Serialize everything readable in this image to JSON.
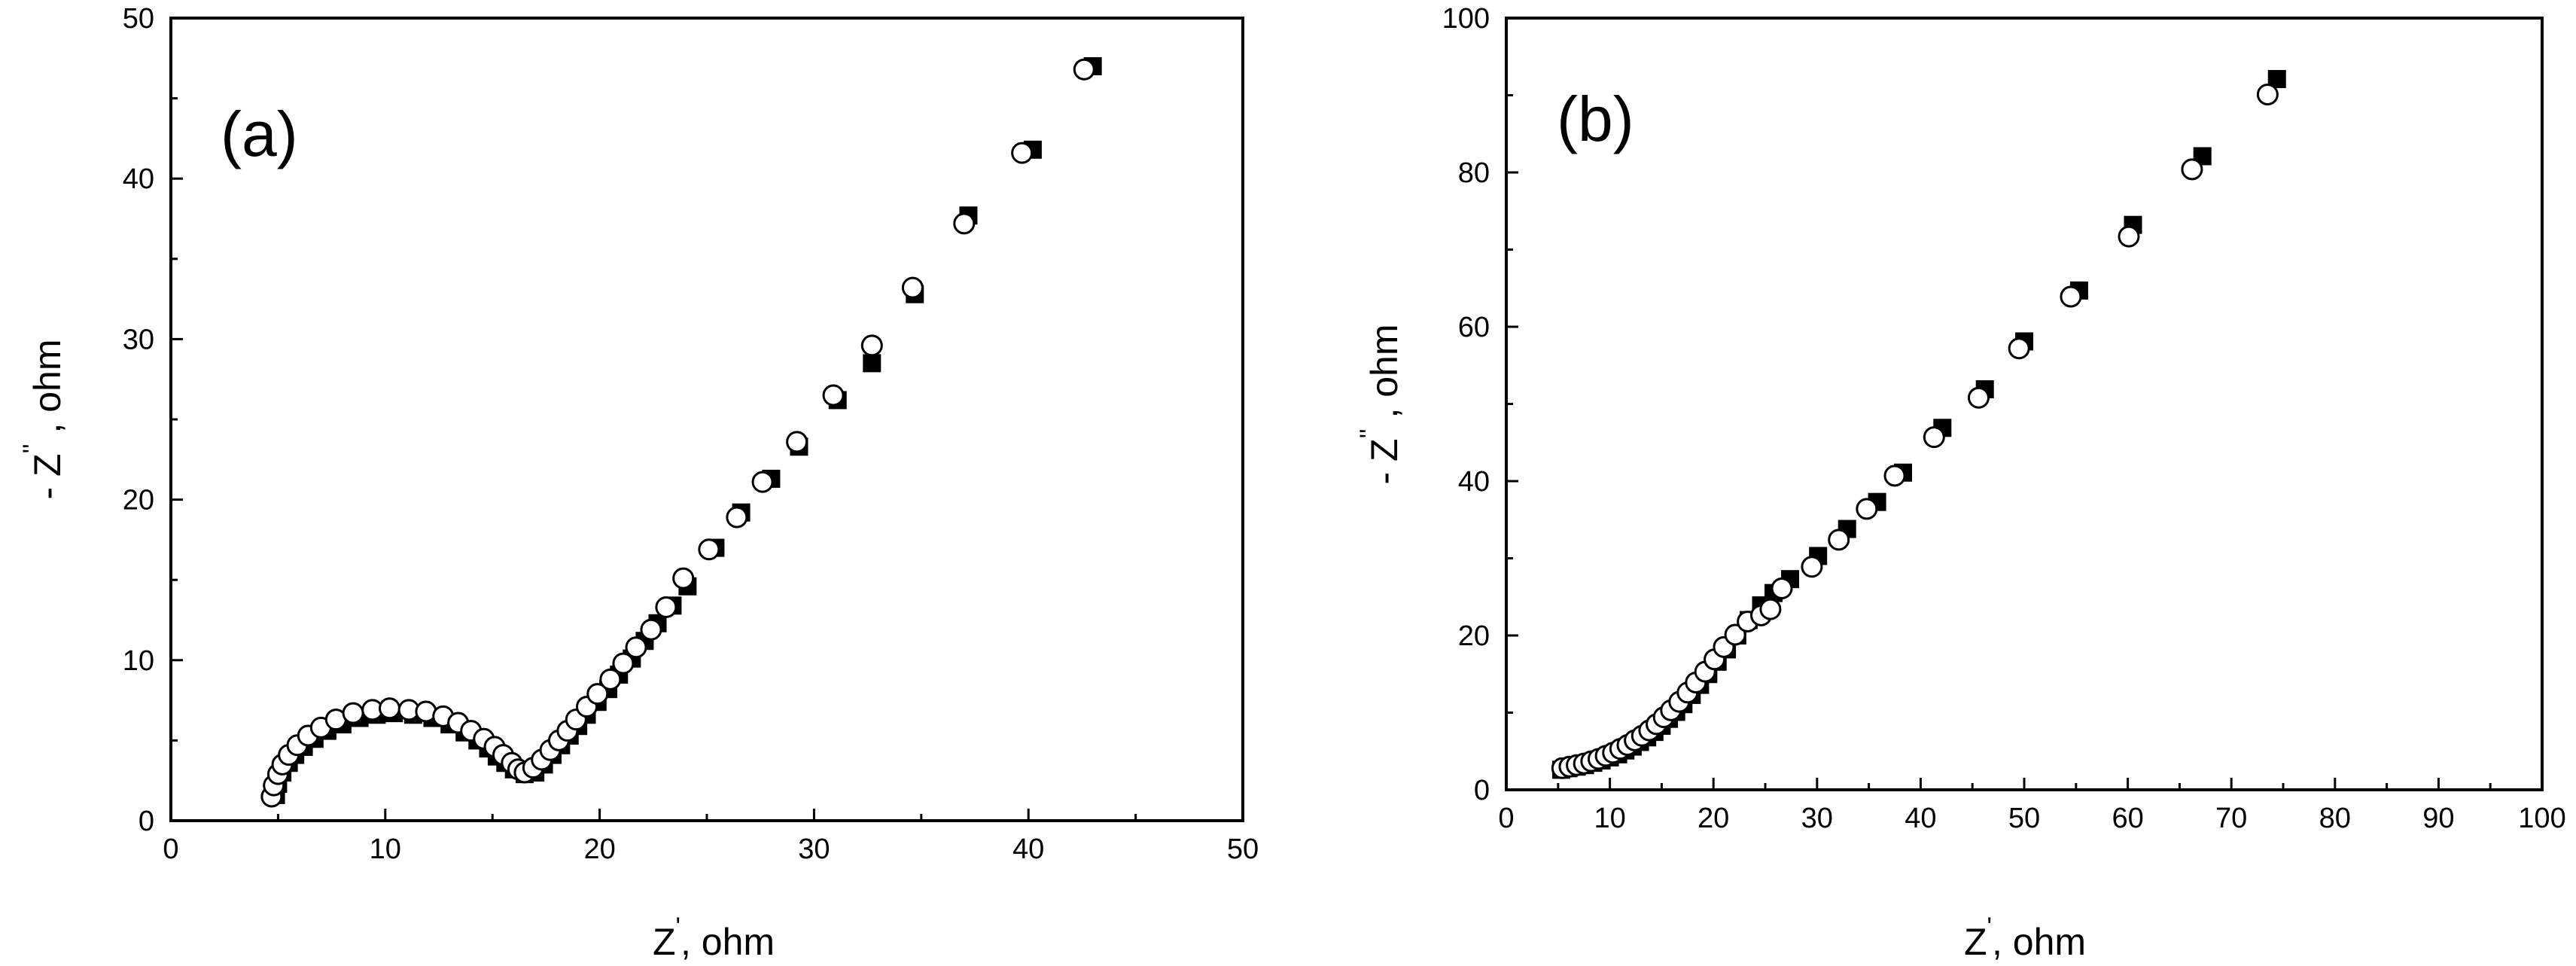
{
  "chart_data": [
    {
      "type": "scatter",
      "panel_label": "(a)",
      "xlabel": "Z', ohm",
      "ylabel": "-Z'', ohm",
      "xlabel_main": "Z",
      "xlabel_prime": "'",
      "xlabel_rest": ", ohm",
      "ylabel_main": "- Z",
      "ylabel_prime": "''",
      "ylabel_rest": " , ohm",
      "xlim": [
        0,
        50
      ],
      "ylim": [
        0,
        50
      ],
      "xticks": [
        "0",
        "10",
        "20",
        "30",
        "40",
        "50"
      ],
      "yticks": [
        "0",
        "10",
        "20",
        "30",
        "40",
        "50"
      ],
      "series": [
        {
          "name": "filled squares",
          "marker": "square",
          "color": "#000000",
          "points": [
            [
              4.9,
              1.6
            ],
            [
              5.0,
              2.3
            ],
            [
              5.2,
              3.0
            ],
            [
              5.5,
              3.6
            ],
            [
              5.8,
              4.1
            ],
            [
              6.2,
              4.6
            ],
            [
              6.7,
              5.1
            ],
            [
              7.3,
              5.6
            ],
            [
              8.0,
              6.0
            ],
            [
              8.8,
              6.4
            ],
            [
              9.6,
              6.6
            ],
            [
              10.4,
              6.7
            ],
            [
              11.3,
              6.6
            ],
            [
              12.2,
              6.4
            ],
            [
              13.0,
              6.0
            ],
            [
              13.7,
              5.5
            ],
            [
              14.3,
              5.0
            ],
            [
              14.8,
              4.5
            ],
            [
              15.2,
              4.0
            ],
            [
              15.6,
              3.6
            ],
            [
              16.0,
              3.2
            ],
            [
              16.5,
              2.9
            ],
            [
              17.0,
              3.0
            ],
            [
              17.4,
              3.5
            ],
            [
              17.8,
              4.1
            ],
            [
              18.2,
              4.7
            ],
            [
              18.6,
              5.3
            ],
            [
              19.0,
              5.9
            ],
            [
              19.4,
              6.6
            ],
            [
              19.9,
              7.4
            ],
            [
              20.4,
              8.2
            ],
            [
              20.9,
              9.1
            ],
            [
              21.5,
              10.1
            ],
            [
              22.1,
              11.2
            ],
            [
              22.7,
              12.3
            ],
            [
              23.4,
              13.4
            ],
            [
              24.1,
              14.6
            ],
            [
              25.4,
              17.0
            ],
            [
              26.6,
              19.2
            ],
            [
              28.0,
              21.3
            ],
            [
              29.3,
              23.3
            ],
            [
              31.1,
              26.2
            ],
            [
              32.7,
              28.5
            ],
            [
              34.7,
              32.8
            ],
            [
              37.2,
              37.7
            ],
            [
              40.2,
              41.8
            ],
            [
              43.0,
              47.0
            ]
          ]
        },
        {
          "name": "open circles",
          "marker": "circle",
          "color": "#000000",
          "points": [
            [
              4.7,
              1.5
            ],
            [
              4.8,
              2.2
            ],
            [
              5.0,
              2.9
            ],
            [
              5.2,
              3.5
            ],
            [
              5.5,
              4.1
            ],
            [
              5.9,
              4.7
            ],
            [
              6.4,
              5.3
            ],
            [
              7.0,
              5.8
            ],
            [
              7.7,
              6.3
            ],
            [
              8.5,
              6.7
            ],
            [
              9.4,
              6.9
            ],
            [
              10.2,
              7.0
            ],
            [
              11.1,
              6.9
            ],
            [
              11.9,
              6.8
            ],
            [
              12.7,
              6.5
            ],
            [
              13.4,
              6.1
            ],
            [
              14.0,
              5.6
            ],
            [
              14.6,
              5.1
            ],
            [
              15.1,
              4.6
            ],
            [
              15.5,
              4.1
            ],
            [
              15.9,
              3.6
            ],
            [
              16.2,
              3.2
            ],
            [
              16.5,
              3.0
            ],
            [
              16.9,
              3.3
            ],
            [
              17.3,
              3.8
            ],
            [
              17.7,
              4.4
            ],
            [
              18.1,
              5.0
            ],
            [
              18.5,
              5.6
            ],
            [
              18.9,
              6.3
            ],
            [
              19.4,
              7.1
            ],
            [
              19.9,
              7.9
            ],
            [
              20.5,
              8.8
            ],
            [
              21.1,
              9.8
            ],
            [
              21.7,
              10.8
            ],
            [
              22.4,
              11.9
            ],
            [
              23.1,
              13.3
            ],
            [
              23.9,
              15.1
            ],
            [
              25.1,
              16.9
            ],
            [
              26.4,
              18.9
            ],
            [
              27.6,
              21.1
            ],
            [
              29.2,
              23.6
            ],
            [
              30.9,
              26.5
            ],
            [
              32.7,
              29.6
            ],
            [
              34.6,
              33.2
            ],
            [
              37.0,
              37.2
            ],
            [
              39.7,
              41.6
            ],
            [
              42.6,
              46.8
            ]
          ]
        }
      ]
    },
    {
      "type": "scatter",
      "panel_label": "(b)",
      "xlabel": "Z', ohm",
      "ylabel": "-Z'', ohm",
      "xlabel_main": "Z",
      "xlabel_prime": "'",
      "xlabel_rest": ", ohm",
      "ylabel_main": "- Z",
      "ylabel_prime": "''",
      "ylabel_rest": " , ohm",
      "xlim": [
        0,
        100
      ],
      "ylim": [
        0,
        100
      ],
      "xticks": [
        "0",
        "10",
        "20",
        "30",
        "40",
        "50",
        "60",
        "70",
        "80",
        "90",
        "100"
      ],
      "yticks": [
        "0",
        "20",
        "40",
        "60",
        "80",
        "100"
      ],
      "series": [
        {
          "name": "filled squares",
          "marker": "square",
          "color": "#000000",
          "points": [
            [
              5.3,
              2.6
            ],
            [
              6.0,
              2.8
            ],
            [
              6.8,
              3.0
            ],
            [
              7.6,
              3.2
            ],
            [
              8.4,
              3.5
            ],
            [
              9.2,
              3.8
            ],
            [
              10.0,
              4.2
            ],
            [
              10.8,
              4.6
            ],
            [
              11.5,
              5.1
            ],
            [
              12.2,
              5.6
            ],
            [
              12.9,
              6.2
            ],
            [
              13.6,
              6.8
            ],
            [
              14.3,
              7.5
            ],
            [
              15.0,
              8.3
            ],
            [
              15.7,
              9.2
            ],
            [
              16.4,
              10.1
            ],
            [
              17.1,
              11.1
            ],
            [
              17.9,
              12.3
            ],
            [
              18.7,
              13.6
            ],
            [
              19.5,
              15.0
            ],
            [
              20.4,
              16.6
            ],
            [
              21.3,
              18.2
            ],
            [
              22.3,
              20.0
            ],
            [
              23.4,
              22.0
            ],
            [
              24.6,
              23.9
            ],
            [
              25.8,
              25.5
            ],
            [
              27.4,
              27.3
            ],
            [
              30.1,
              30.3
            ],
            [
              32.9,
              33.8
            ],
            [
              35.8,
              37.3
            ],
            [
              38.3,
              41.1
            ],
            [
              42.1,
              46.9
            ],
            [
              46.2,
              51.9
            ],
            [
              50.0,
              58.1
            ],
            [
              55.3,
              64.7
            ],
            [
              60.5,
              73.2
            ],
            [
              67.2,
              82.1
            ],
            [
              74.4,
              92.1
            ]
          ]
        },
        {
          "name": "open circles",
          "marker": "circle",
          "color": "#000000",
          "points": [
            [
              5.4,
              2.8
            ],
            [
              6.1,
              3.0
            ],
            [
              6.8,
              3.2
            ],
            [
              7.5,
              3.4
            ],
            [
              8.2,
              3.7
            ],
            [
              8.9,
              4.0
            ],
            [
              9.6,
              4.4
            ],
            [
              10.3,
              4.8
            ],
            [
              11.0,
              5.3
            ],
            [
              11.7,
              5.8
            ],
            [
              12.4,
              6.4
            ],
            [
              13.1,
              7.0
            ],
            [
              13.8,
              7.7
            ],
            [
              14.5,
              8.5
            ],
            [
              15.2,
              9.4
            ],
            [
              15.9,
              10.3
            ],
            [
              16.7,
              11.4
            ],
            [
              17.5,
              12.6
            ],
            [
              18.3,
              13.9
            ],
            [
              19.2,
              15.3
            ],
            [
              20.1,
              16.9
            ],
            [
              21.0,
              18.5
            ],
            [
              22.1,
              20.1
            ],
            [
              23.3,
              21.8
            ],
            [
              24.6,
              22.6
            ],
            [
              25.5,
              23.4
            ],
            [
              26.6,
              26.1
            ],
            [
              29.5,
              28.9
            ],
            [
              32.1,
              32.4
            ],
            [
              34.8,
              36.4
            ],
            [
              37.5,
              40.7
            ],
            [
              41.3,
              45.7
            ],
            [
              45.6,
              50.8
            ],
            [
              49.5,
              57.2
            ],
            [
              54.5,
              63.9
            ],
            [
              60.1,
              71.7
            ],
            [
              66.2,
              80.4
            ],
            [
              73.5,
              90.1
            ]
          ]
        }
      ]
    }
  ]
}
